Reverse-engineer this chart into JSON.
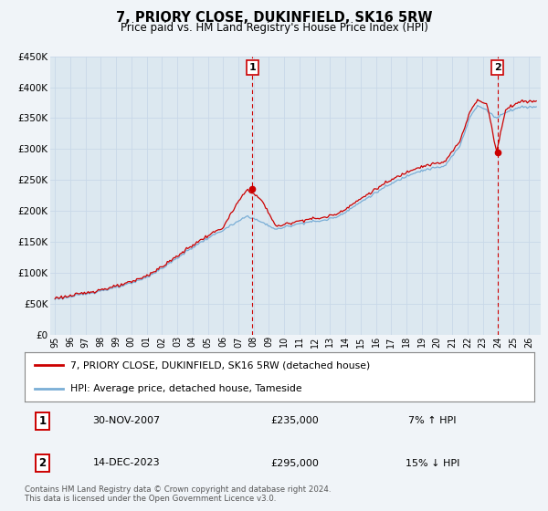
{
  "title": "7, PRIORY CLOSE, DUKINFIELD, SK16 5RW",
  "subtitle": "Price paid vs. HM Land Registry's House Price Index (HPI)",
  "ylabel_ticks": [
    "£0",
    "£50K",
    "£100K",
    "£150K",
    "£200K",
    "£250K",
    "£300K",
    "£350K",
    "£400K",
    "£450K"
  ],
  "ylabel_values": [
    0,
    50000,
    100000,
    150000,
    200000,
    250000,
    300000,
    350000,
    400000,
    450000
  ],
  "ylim": [
    0,
    450000
  ],
  "xlim_start": 1994.7,
  "xlim_end": 2026.8,
  "grid_color": "#c8d8e8",
  "plot_bg_color": "#dce8f0",
  "fig_bg_color": "#f0f4f8",
  "red_line_color": "#cc0000",
  "blue_line_color": "#7aaed6",
  "vline_color": "#cc0000",
  "legend_label_red": "7, PRIORY CLOSE, DUKINFIELD, SK16 5RW (detached house)",
  "legend_label_blue": "HPI: Average price, detached house, Tameside",
  "point1_label": "1",
  "point1_date": "30-NOV-2007",
  "point1_price": "£235,000",
  "point1_hpi": "7% ↑ HPI",
  "point1_x": 2007.92,
  "point1_y": 235000,
  "point2_label": "2",
  "point2_date": "14-DEC-2023",
  "point2_price": "£295,000",
  "point2_hpi": "15% ↓ HPI",
  "point2_x": 2023.96,
  "point2_y": 295000,
  "footer": "Contains HM Land Registry data © Crown copyright and database right 2024.\nThis data is licensed under the Open Government Licence v3.0."
}
